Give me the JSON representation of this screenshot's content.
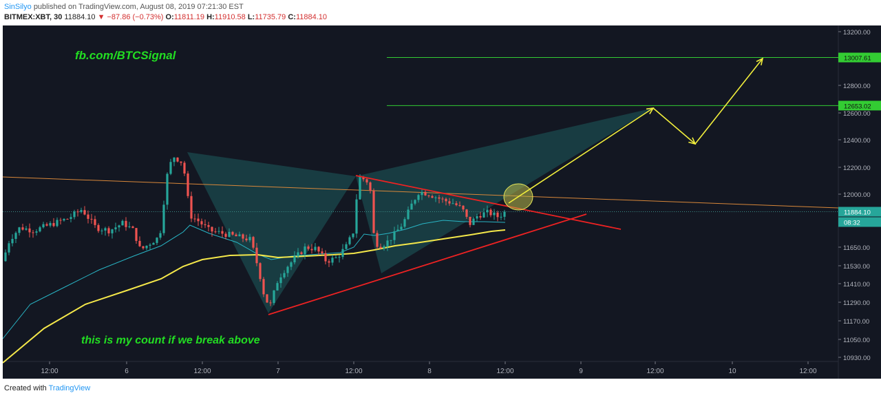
{
  "header": {
    "author": "SinSilyo",
    "published": "published on TradingView.com, August 08, 2019 07:21:30 EST",
    "symbol": "BITMEX:XBT, 30",
    "last": "11884.10",
    "change": "▼ −87.86 (−0.73%)",
    "o_label": "O:",
    "o_value": "11811.19",
    "h_label": "H:",
    "h_value": "11910.58",
    "l_label": "L:",
    "l_value": "11735.79",
    "c_label": "C:",
    "c_value": "11884.10"
  },
  "footer": {
    "created": "Created with",
    "brand": "TradingView"
  },
  "colors": {
    "background": "#131722",
    "up": "#26a69a",
    "down": "#ef5350",
    "ma_fast": "#29b6c6",
    "ma_slow": "#f5e84a",
    "orange_line": "#d9883a",
    "target_line": "#33cc33",
    "trend_red": "#ee2222",
    "projection": "#f2ef3c",
    "annotation_text": "#22dd22",
    "harmonic_fill": "#1f6b6b"
  },
  "chart_data": {
    "type": "candlestick",
    "y_axis": {
      "ticks": [
        "13200.00",
        "13000.00",
        "12800.00",
        "12600.00",
        "12400.00",
        "12200.00",
        "12000.00",
        "11650.00",
        "11530.00",
        "11410.00",
        "11290.00",
        "11170.00",
        "11050.00",
        "10930.00"
      ],
      "badges": {
        "last_price": "11884.10",
        "countdown": "08:32",
        "target_high": "13007.61",
        "target_low": "12653.02"
      }
    },
    "x_axis": {
      "ticks": [
        "12:00",
        "6",
        "12:00",
        "7",
        "12:00",
        "8",
        "12:00",
        "9",
        "12:00",
        "10",
        "12:00"
      ]
    },
    "annotations": {
      "brand_text": "fb.com/BTCSignal",
      "count_text": "this is my count if we break above"
    },
    "target_levels": [
      13007.61,
      12653.02
    ],
    "pattern": "harmonic + symmetrical triangle, projected breakout"
  }
}
